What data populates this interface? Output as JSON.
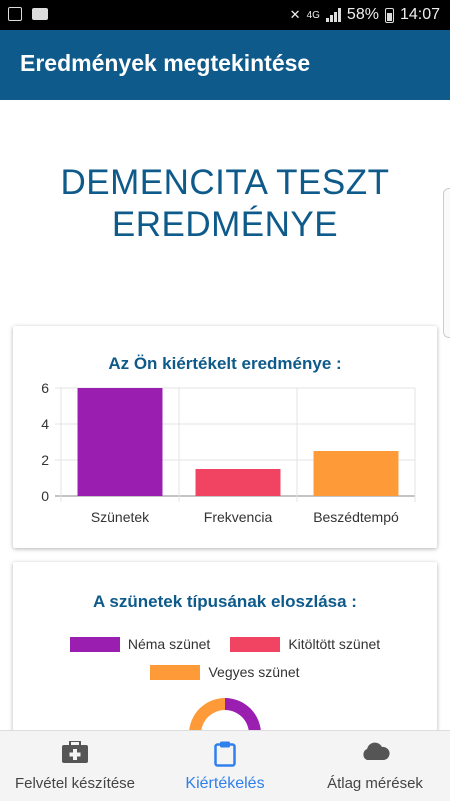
{
  "status_bar": {
    "battery": "58%",
    "time": "14:07"
  },
  "app_bar": {
    "title": "Eredmények megtekintése"
  },
  "main": {
    "title_line1": "DEMENCITA TESZT",
    "title_line2": "EREDMÉNYE"
  },
  "card1": {
    "title": "Az Ön kiértékelt eredménye :"
  },
  "card2": {
    "title": "A szünetek típusának eloszlása :",
    "legend": [
      {
        "label": "Néma szünet",
        "color": "#9a1eb0"
      },
      {
        "label": "Kitöltött szünet",
        "color": "#f04462"
      },
      {
        "label": "Vegyes szünet",
        "color": "#ff9a38"
      }
    ]
  },
  "bottom_nav": {
    "items": [
      {
        "label": "Felvétel készítése",
        "icon": "medical-kit-icon",
        "active": false
      },
      {
        "label": "Kiértékelés",
        "icon": "clipboard-icon",
        "active": true
      },
      {
        "label": "Átlag mérések",
        "icon": "cloud-icon",
        "active": false
      }
    ]
  },
  "colors": {
    "primary": "#0e5a8a",
    "active_nav": "#2f80ed"
  },
  "chart_data": [
    {
      "type": "bar",
      "categories": [
        "Szünetek",
        "Frekvencia",
        "Beszédtempó"
      ],
      "values": [
        6,
        1.5,
        2.5
      ],
      "colors": [
        "#9a1eb0",
        "#f04462",
        "#ff9a38"
      ],
      "title": "Az Ön kiértékelt eredménye :",
      "xlabel": "",
      "ylabel": "",
      "ylim": [
        0,
        6
      ],
      "yticks": [
        0,
        2,
        4,
        6
      ],
      "grid": true,
      "legend": "none"
    },
    {
      "type": "pie",
      "title": "A szünetek típusának eloszlása :",
      "categories": [
        "Néma szünet",
        "Kitöltött szünet",
        "Vegyes szünet"
      ],
      "colors": [
        "#9a1eb0",
        "#f04462",
        "#ff9a38"
      ],
      "legend": "top"
    }
  ]
}
